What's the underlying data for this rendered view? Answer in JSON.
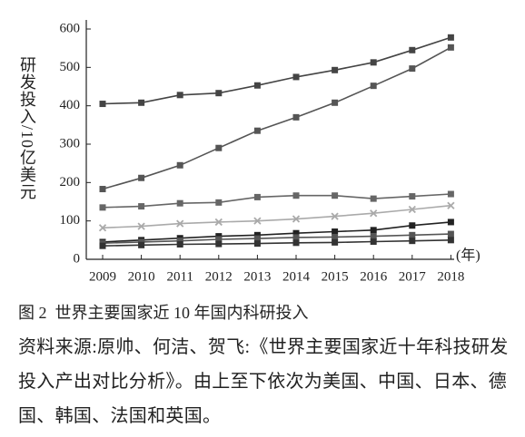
{
  "chart_data": {
    "type": "line",
    "y_label": "研发投入/10亿美元",
    "x_label": "(年)",
    "categories": [
      "2009",
      "2010",
      "2011",
      "2012",
      "2013",
      "2014",
      "2015",
      "2016",
      "2017",
      "2018"
    ],
    "ylim": [
      0,
      600
    ],
    "yticks": [
      0,
      100,
      200,
      300,
      400,
      500,
      600
    ],
    "series": [
      {
        "name": "美国",
        "color": "#444444",
        "marker": "square",
        "values": [
          405,
          408,
          428,
          433,
          453,
          475,
          493,
          513,
          545,
          578
        ]
      },
      {
        "name": "中国",
        "color": "#555555",
        "marker": "square",
        "values": [
          183,
          212,
          245,
          290,
          335,
          370,
          408,
          452,
          497,
          552
        ]
      },
      {
        "name": "日本",
        "color": "#666666",
        "marker": "square",
        "values": [
          135,
          138,
          146,
          148,
          162,
          166,
          166,
          158,
          164,
          170
        ]
      },
      {
        "name": "德国",
        "color": "#aaaaaa",
        "marker": "x",
        "values": [
          82,
          86,
          93,
          97,
          100,
          105,
          112,
          120,
          130,
          140
        ]
      },
      {
        "name": "韩国",
        "color": "#222222",
        "marker": "square",
        "values": [
          45,
          50,
          55,
          60,
          63,
          68,
          72,
          76,
          88,
          97
        ]
      },
      {
        "name": "法国",
        "color": "#555555",
        "marker": "square",
        "values": [
          42,
          45,
          48,
          52,
          54,
          57,
          58,
          60,
          63,
          66
        ]
      },
      {
        "name": "英国",
        "color": "#333333",
        "marker": "square",
        "values": [
          35,
          37,
          39,
          40,
          41,
          43,
          44,
          46,
          48,
          50
        ]
      }
    ],
    "caption": "图 2  世界主要国家近 10 年国内科研投入",
    "source": "资料来源:原帅、何洁、贺飞:《世界主要国家近十年科技研发投入产出对比分析》。由上至下依次为美国、中国、日本、德国、韩国、法国和英国。"
  }
}
